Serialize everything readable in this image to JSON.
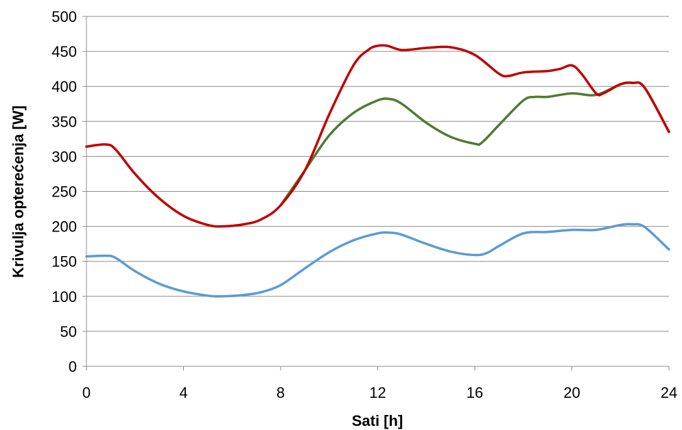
{
  "chart_data": {
    "type": "line",
    "title": "",
    "xlabel": "Sati [h]",
    "ylabel": "Krivulja opterećenja [W]",
    "xlim": [
      0,
      24
    ],
    "ylim": [
      0,
      500
    ],
    "x_ticks": [
      0,
      4,
      8,
      12,
      16,
      20,
      24
    ],
    "y_ticks": [
      0,
      50,
      100,
      150,
      200,
      250,
      300,
      350,
      400,
      450,
      500
    ],
    "grid": "horizontal",
    "legend": "none",
    "series": [
      {
        "color": "#c00000",
        "points": [
          [
            0,
            314
          ],
          [
            0.8,
            317
          ],
          [
            1.2,
            310
          ],
          [
            2,
            275
          ],
          [
            3,
            240
          ],
          [
            4,
            215
          ],
          [
            5,
            202
          ],
          [
            5.6,
            200
          ],
          [
            6.5,
            203
          ],
          [
            7.2,
            210
          ],
          [
            8,
            230
          ],
          [
            9,
            280
          ],
          [
            10,
            360
          ],
          [
            11,
            430
          ],
          [
            11.6,
            452
          ],
          [
            12,
            458
          ],
          [
            12.4,
            458
          ],
          [
            13,
            452
          ],
          [
            14,
            455
          ],
          [
            15,
            456
          ],
          [
            16,
            445
          ],
          [
            17,
            418
          ],
          [
            17.4,
            415
          ],
          [
            18,
            420
          ],
          [
            19,
            422
          ],
          [
            19.5,
            425
          ],
          [
            20,
            430
          ],
          [
            20.4,
            418
          ],
          [
            21,
            390
          ],
          [
            21.3,
            390
          ],
          [
            22,
            403
          ],
          [
            22.5,
            405
          ],
          [
            23,
            398
          ],
          [
            24,
            335
          ]
        ]
      },
      {
        "color": "#4e7c31",
        "points": [
          [
            8,
            230
          ],
          [
            9,
            280
          ],
          [
            10,
            330
          ],
          [
            11,
            362
          ],
          [
            12,
            380
          ],
          [
            12.5,
            382
          ],
          [
            13,
            375
          ],
          [
            14,
            348
          ],
          [
            15,
            328
          ],
          [
            16,
            318
          ],
          [
            16.3,
            320
          ],
          [
            17,
            345
          ],
          [
            18,
            380
          ],
          [
            18.5,
            385
          ],
          [
            19,
            385
          ],
          [
            20,
            390
          ],
          [
            21,
            388
          ],
          [
            22,
            403
          ],
          [
            22.5,
            405
          ],
          [
            23,
            398
          ],
          [
            24,
            335
          ]
        ]
      },
      {
        "color": "#5b9bd5",
        "points": [
          [
            0,
            157
          ],
          [
            0.8,
            158
          ],
          [
            1.2,
            155
          ],
          [
            2,
            136
          ],
          [
            3,
            118
          ],
          [
            4,
            107
          ],
          [
            5,
            101
          ],
          [
            5.6,
            100
          ],
          [
            6.5,
            102
          ],
          [
            7.2,
            106
          ],
          [
            8,
            116
          ],
          [
            9,
            140
          ],
          [
            10,
            163
          ],
          [
            11,
            180
          ],
          [
            12,
            190
          ],
          [
            12.5,
            191
          ],
          [
            13,
            188
          ],
          [
            14,
            175
          ],
          [
            15,
            164
          ],
          [
            16,
            159
          ],
          [
            16.5,
            162
          ],
          [
            17,
            172
          ],
          [
            18,
            190
          ],
          [
            19,
            192
          ],
          [
            20,
            195
          ],
          [
            21,
            195
          ],
          [
            22,
            202
          ],
          [
            22.5,
            203
          ],
          [
            23,
            199
          ],
          [
            24,
            167
          ]
        ]
      }
    ]
  }
}
